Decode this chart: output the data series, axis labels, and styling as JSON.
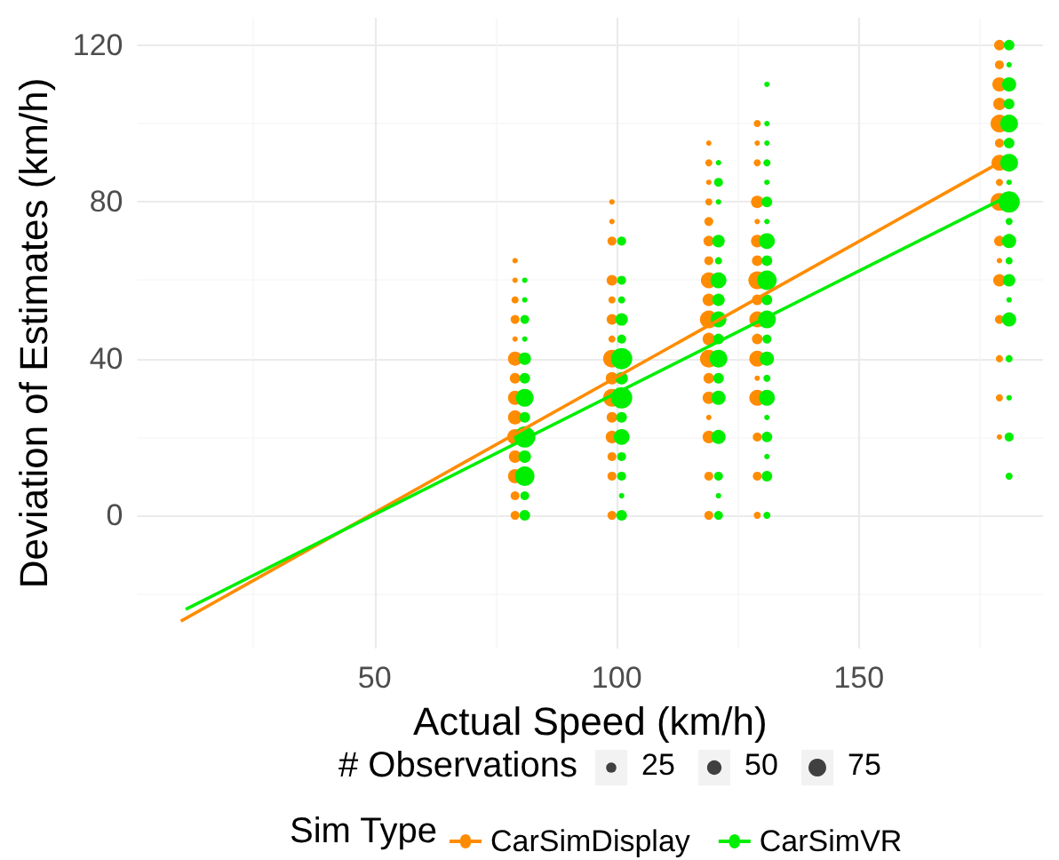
{
  "chart_data": {
    "type": "bubble",
    "xlabel": "Actual Speed (km/h)",
    "ylabel": "Deviation of Estimates (km/h)",
    "legend_title": "Sim Type",
    "annotations": [
      "# Observations"
    ],
    "xlim": [
      1,
      188
    ],
    "ylim": [
      -34,
      127
    ],
    "xticks": [
      50,
      100,
      150
    ],
    "yticks": [
      0,
      40,
      80,
      120
    ],
    "grid": true,
    "legend": "bottom",
    "size_legend": [
      25,
      50,
      75
    ],
    "series": [
      {
        "name": "CarSimDisplay",
        "color": "#ff8c00",
        "x": [
          79,
          79,
          79,
          79,
          79,
          79,
          79,
          79,
          79,
          79,
          79,
          79,
          79,
          79,
          99,
          99,
          99,
          99,
          99,
          99,
          99,
          99,
          99,
          99,
          99,
          99,
          99,
          99,
          99,
          119,
          119,
          119,
          119,
          119,
          119,
          119,
          119,
          119,
          119,
          119,
          119,
          119,
          119,
          119,
          119,
          119,
          119,
          129,
          129,
          129,
          129,
          129,
          129,
          129,
          129,
          129,
          129,
          129,
          129,
          129,
          129,
          129,
          129,
          129,
          179,
          179,
          179,
          179,
          179,
          179,
          179,
          179,
          179,
          179,
          179,
          179,
          179,
          179,
          179,
          179
        ],
        "values": [
          65,
          60,
          55,
          50,
          45,
          40,
          35,
          30,
          25,
          20,
          15,
          10,
          5,
          0,
          80,
          75,
          70,
          60,
          55,
          50,
          45,
          40,
          35,
          30,
          25,
          20,
          15,
          10,
          0,
          95,
          90,
          85,
          80,
          75,
          70,
          65,
          60,
          55,
          50,
          45,
          40,
          35,
          30,
          25,
          20,
          10,
          0,
          100,
          95,
          90,
          80,
          75,
          70,
          65,
          60,
          55,
          50,
          45,
          40,
          35,
          30,
          20,
          10,
          0,
          120,
          115,
          110,
          105,
          100,
          95,
          90,
          85,
          80,
          70,
          65,
          60,
          50,
          40,
          30,
          20
        ],
        "sizes": [
          7,
          7,
          12,
          19,
          7,
          48,
          27,
          48,
          48,
          60,
          37,
          48,
          19,
          19,
          7,
          7,
          19,
          27,
          12,
          27,
          12,
          75,
          37,
          75,
          27,
          37,
          19,
          19,
          19,
          7,
          12,
          7,
          12,
          19,
          27,
          19,
          60,
          37,
          75,
          37,
          75,
          27,
          37,
          7,
          37,
          19,
          19,
          12,
          7,
          12,
          37,
          7,
          37,
          27,
          75,
          27,
          60,
          27,
          60,
          7,
          60,
          19,
          19,
          12,
          27,
          19,
          48,
          37,
          75,
          19,
          60,
          12,
          75,
          27,
          7,
          37,
          19,
          12,
          12,
          7
        ]
      },
      {
        "name": "CarSimVR",
        "color": "#00ee00",
        "x": [
          81,
          81,
          81,
          81,
          81,
          81,
          81,
          81,
          81,
          81,
          81,
          81,
          81,
          101,
          101,
          101,
          101,
          101,
          101,
          101,
          101,
          101,
          101,
          101,
          101,
          101,
          101,
          121,
          121,
          121,
          121,
          121,
          121,
          121,
          121,
          121,
          121,
          121,
          121,
          121,
          121,
          121,
          121,
          131,
          131,
          131,
          131,
          131,
          131,
          131,
          131,
          131,
          131,
          131,
          131,
          131,
          131,
          131,
          131,
          131,
          131,
          131,
          131,
          131,
          181,
          181,
          181,
          181,
          181,
          181,
          181,
          181,
          181,
          181,
          181,
          181,
          181,
          181,
          181,
          181,
          181,
          181,
          181
        ],
        "values": [
          60,
          55,
          50,
          45,
          40,
          35,
          30,
          25,
          20,
          15,
          10,
          5,
          0,
          70,
          60,
          55,
          50,
          45,
          40,
          35,
          30,
          25,
          20,
          15,
          10,
          5,
          0,
          90,
          85,
          80,
          70,
          65,
          60,
          55,
          50,
          45,
          40,
          35,
          30,
          20,
          10,
          5,
          0,
          110,
          100,
          95,
          90,
          85,
          80,
          75,
          70,
          65,
          60,
          55,
          50,
          45,
          40,
          35,
          30,
          25,
          20,
          15,
          10,
          0,
          120,
          115,
          110,
          105,
          100,
          95,
          90,
          85,
          80,
          75,
          70,
          65,
          60,
          55,
          50,
          40,
          30,
          20,
          10
        ],
        "sizes": [
          7,
          7,
          19,
          7,
          37,
          27,
          75,
          27,
          108,
          37,
          90,
          19,
          27,
          19,
          19,
          12,
          37,
          19,
          108,
          37,
          108,
          27,
          60,
          19,
          19,
          7,
          27,
          7,
          19,
          7,
          37,
          12,
          60,
          37,
          60,
          27,
          75,
          27,
          48,
          48,
          19,
          7,
          19,
          7,
          7,
          7,
          12,
          7,
          27,
          7,
          60,
          27,
          90,
          27,
          75,
          19,
          48,
          12,
          60,
          7,
          27,
          7,
          27,
          12,
          27,
          7,
          48,
          27,
          75,
          27,
          75,
          7,
          108,
          12,
          48,
          12,
          37,
          7,
          48,
          12,
          7,
          19,
          12
        ]
      },
      {
        "type": "line",
        "color": "#ff8c00",
        "x": [
          10,
          179
        ],
        "values": [
          -27,
          90
        ]
      },
      {
        "type": "line",
        "color": "#00ee00",
        "x": [
          11,
          180
        ],
        "values": [
          -24,
          81
        ]
      }
    ]
  }
}
